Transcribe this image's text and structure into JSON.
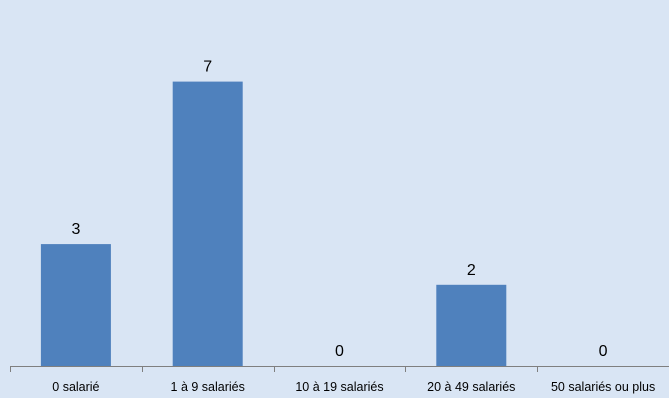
{
  "chart_data": {
    "type": "bar",
    "categories": [
      "0 salarié",
      "1 à 9 salariés",
      "10 à 19 salariés",
      "20 à 49 salariés",
      "50 salariés ou plus"
    ],
    "values": [
      3,
      7,
      0,
      2,
      0
    ],
    "title": "",
    "xlabel": "",
    "ylabel": "",
    "ylim": [
      0,
      8
    ],
    "grid": false,
    "data_labels": true,
    "bar_color": "#4f81bd",
    "background_color": "#d9e5f4",
    "axis_color": "#7f7f7f"
  }
}
